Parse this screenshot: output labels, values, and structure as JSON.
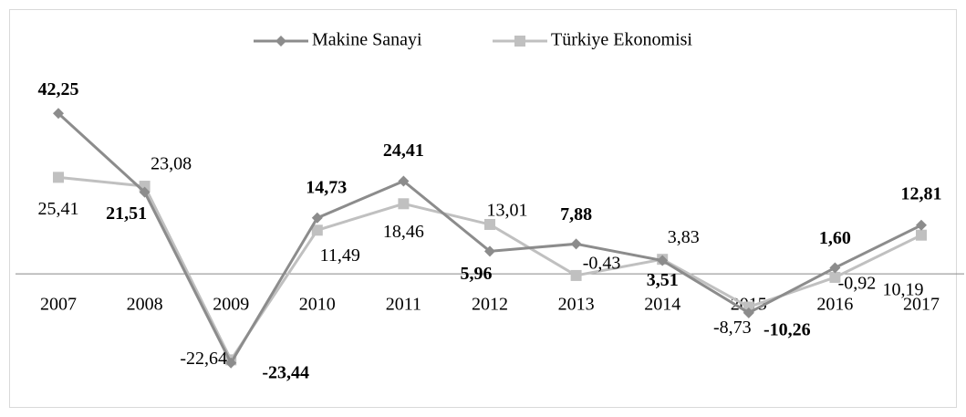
{
  "chart_data": {
    "type": "line",
    "categories": [
      "2007",
      "2008",
      "2009",
      "2010",
      "2011",
      "2012",
      "2013",
      "2014",
      "2015",
      "2016",
      "2017"
    ],
    "series": [
      {
        "name": "Makine Sanayi",
        "color": "#8c8c8c",
        "marker": "diamond",
        "values": [
          42.25,
          21.51,
          -23.44,
          14.73,
          24.41,
          5.96,
          7.88,
          3.51,
          -10.26,
          1.6,
          12.81
        ],
        "value_labels": [
          "42,25",
          "21,51",
          "-23,44",
          "14,73",
          "24,41",
          "5,96",
          "7,88",
          "3,51",
          "-10,26",
          "1,60",
          "12,81"
        ]
      },
      {
        "name": "Türkiye Ekonomisi",
        "color": "#c0c0c0",
        "marker": "square",
        "values": [
          25.41,
          23.08,
          -22.64,
          11.49,
          18.46,
          13.01,
          -0.43,
          3.83,
          -8.73,
          -0.92,
          10.19
        ],
        "value_labels": [
          "25,41",
          "23,08",
          "-22,64",
          "11,49",
          "18,46",
          "13,01",
          "-0,43",
          "3,83",
          "-8,73",
          "-0,92",
          "10,19"
        ]
      }
    ],
    "ylim": [
      -30,
      50
    ],
    "legend": "top"
  }
}
